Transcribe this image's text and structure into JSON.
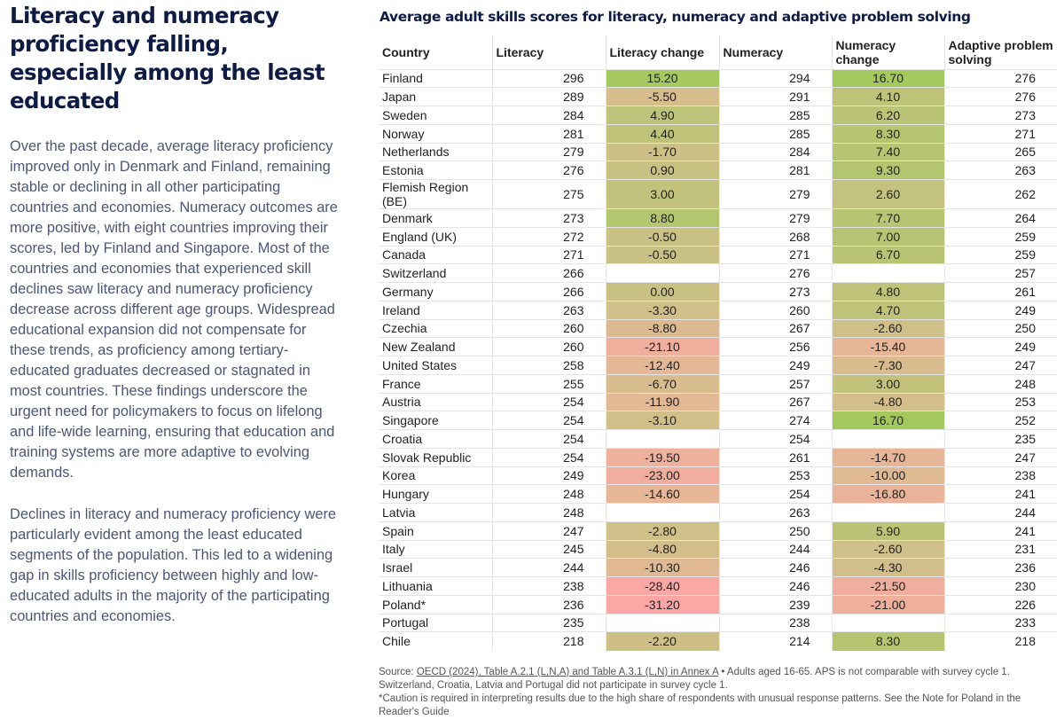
{
  "left": {
    "title": "Literacy and numeracy proficiency falling, especially among the least educated",
    "paragraphs": [
      "Over the past decade, average literacy proficiency improved only in Denmark and Finland, remaining stable or declining in all other participating countries and economies. Numeracy outcomes are more positive, with eight countries improving their scores, led by Finland and Singapore. Most of the countries and economies that experienced skill declines saw literacy and numeracy proficiency decrease across different age groups. Widespread educational expansion did not compensate for these trends, as proficiency among tertiary-educated graduates decreased or stagnated in most countries. These findings underscore the urgent need for policymakers to focus on lifelong and life-wide learning, ensuring that education and training systems are more adaptive to evolving demands.",
      "Declines in literacy and numeracy proficiency were particularly evident among the least educated segments of the population. This led to a widening gap in skills proficiency between highly and low-educated adults in the majority of the participating countries and economies."
    ]
  },
  "chart_data": {
    "type": "table",
    "title": "Average adult skills scores for literacy, numeracy and adaptive problem solving",
    "columns": [
      "Country",
      "Literacy",
      "Literacy change",
      "Numeracy",
      "Numeracy change",
      "Adaptive problem solving"
    ],
    "rows": [
      [
        "Finland",
        296,
        "15.20",
        294,
        "16.70",
        276
      ],
      [
        "Japan",
        289,
        "-5.50",
        291,
        "4.10",
        276
      ],
      [
        "Sweden",
        284,
        "4.90",
        285,
        "6.20",
        273
      ],
      [
        "Norway",
        281,
        "4.40",
        285,
        "8.30",
        271
      ],
      [
        "Netherlands",
        279,
        "-1.70",
        284,
        "7.40",
        265
      ],
      [
        "Estonia",
        276,
        "0.90",
        281,
        "9.30",
        263
      ],
      [
        "Flemish Region (BE)",
        275,
        "3.00",
        279,
        "2.60",
        262
      ],
      [
        "Denmark",
        273,
        "8.80",
        279,
        "7.70",
        264
      ],
      [
        "England (UK)",
        272,
        "-0.50",
        268,
        "7.00",
        259
      ],
      [
        "Canada",
        271,
        "-0.50",
        271,
        "6.70",
        259
      ],
      [
        "Switzerland",
        266,
        "",
        276,
        "",
        257
      ],
      [
        "Germany",
        266,
        "0.00",
        273,
        "4.80",
        261
      ],
      [
        "Ireland",
        263,
        "-3.30",
        260,
        "4.70",
        249
      ],
      [
        "Czechia",
        260,
        "-8.80",
        267,
        "-2.60",
        250
      ],
      [
        "New Zealand",
        260,
        "-21.10",
        256,
        "-15.40",
        249
      ],
      [
        "United States",
        258,
        "-12.40",
        249,
        "-7.30",
        247
      ],
      [
        "France",
        255,
        "-6.70",
        257,
        "3.00",
        248
      ],
      [
        "Austria",
        254,
        "-11.90",
        267,
        "-4.80",
        253
      ],
      [
        "Singapore",
        254,
        "-3.10",
        274,
        "16.70",
        252
      ],
      [
        "Croatia",
        254,
        "",
        254,
        "",
        235
      ],
      [
        "Slovak Republic",
        254,
        "-19.50",
        261,
        "-14.70",
        247
      ],
      [
        "Korea",
        249,
        "-23.00",
        253,
        "-10.00",
        238
      ],
      [
        "Hungary",
        248,
        "-14.60",
        254,
        "-16.80",
        241
      ],
      [
        "Latvia",
        248,
        "",
        263,
        "",
        244
      ],
      [
        "Spain",
        247,
        "-2.80",
        250,
        "5.90",
        241
      ],
      [
        "Italy",
        245,
        "-4.80",
        244,
        "-2.60",
        231
      ],
      [
        "Israel",
        244,
        "-10.30",
        246,
        "-4.30",
        236
      ],
      [
        "Lithuania",
        238,
        "-28.40",
        246,
        "-21.50",
        230
      ],
      [
        "Poland*",
        236,
        "-31.20",
        239,
        "-21.00",
        226
      ],
      [
        "Portugal",
        235,
        "",
        238,
        "",
        233
      ],
      [
        "Chile",
        218,
        "-2.20",
        214,
        "8.30",
        218
      ]
    ],
    "colors": {
      "positive": "#a3c85e",
      "neutral": "#c9c184",
      "negative_mid": "#e3b895",
      "negative": "#fca6a6"
    }
  },
  "source": {
    "prefix": "Source: ",
    "link": "OECD (2024), Table A.2.1 (L,N,A) and Table A.3.1 (L,N) in Annex A",
    "note": " • Adults aged 16-65. APS is not comparable with survey cycle 1. Switzerland, Croatia, Latvia and Portugal did not participate in survey cycle 1.",
    "caution": "*Caution is required in interpreting results due to the high share of respondents with unusual response patterns. See the Note for Poland in the Reader's Guide"
  }
}
